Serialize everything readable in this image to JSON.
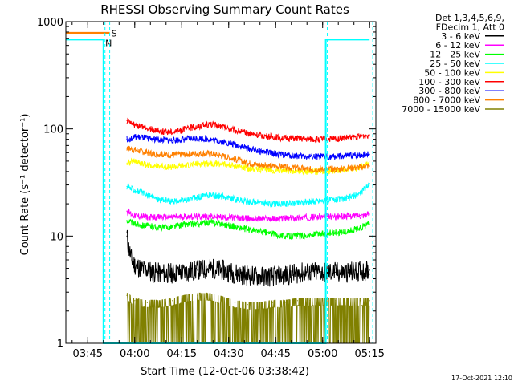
{
  "chart_data": {
    "type": "line",
    "title": "RHESSI Observing Summary Count Rates",
    "xlabel": "Start Time (12-Oct-06 03:38:42)",
    "ylabel": "Count Rate (s⁻¹ detector⁻¹)",
    "yscale": "log",
    "ylim": [
      1,
      1000
    ],
    "xlim_minutes": [
      0,
      99
    ],
    "x_tick_minutes": [
      7,
      22,
      37,
      52,
      67,
      82,
      97
    ],
    "x_tick_labels": [
      "03:45",
      "04:00",
      "04:15",
      "04:30",
      "04:45",
      "05:00",
      "05:15"
    ],
    "y_tick_values": [
      1,
      10,
      100,
      1000
    ],
    "y_tick_labels": [
      "1",
      "10",
      "100",
      "1000"
    ],
    "legend_header": [
      "Det 1,3,4,5,6,9,",
      "FDecim 1, Att 0"
    ],
    "flag_labels": {
      "saa": "S",
      "night": "N"
    },
    "flag_levels": {
      "saa": 780,
      "night": 680
    },
    "series": [
      {
        "name": "3 - 6 keV",
        "color": "#000000",
        "points": [
          [
            19.5,
            10
          ],
          [
            20,
            8
          ],
          [
            21,
            6
          ],
          [
            22,
            5.4
          ],
          [
            24,
            5
          ],
          [
            27,
            4.7
          ],
          [
            30,
            4.5
          ],
          [
            34,
            4.5
          ],
          [
            38,
            4.6
          ],
          [
            42,
            4.8
          ],
          [
            46,
            5
          ],
          [
            50,
            4.8
          ],
          [
            54,
            4.5
          ],
          [
            58,
            4.3
          ],
          [
            62,
            4.2
          ],
          [
            66,
            4.2
          ],
          [
            70,
            4.3
          ],
          [
            74,
            4.5
          ],
          [
            78,
            4.6
          ],
          [
            82,
            4.6
          ],
          [
            86,
            4.6
          ],
          [
            90,
            4.6
          ],
          [
            94,
            4.7
          ],
          [
            97,
            4.8
          ]
        ]
      },
      {
        "name": "6 - 12 keV",
        "color": "#ff00ff",
        "points": [
          [
            19.5,
            17
          ],
          [
            22,
            15.5
          ],
          [
            26,
            15
          ],
          [
            30,
            15
          ],
          [
            34,
            15
          ],
          [
            38,
            15.2
          ],
          [
            42,
            15.2
          ],
          [
            46,
            15.2
          ],
          [
            50,
            15
          ],
          [
            54,
            14.8
          ],
          [
            58,
            14.6
          ],
          [
            62,
            14.5
          ],
          [
            66,
            14.5
          ],
          [
            70,
            14.6
          ],
          [
            74,
            14.8
          ],
          [
            78,
            15
          ],
          [
            82,
            15.2
          ],
          [
            86,
            15.2
          ],
          [
            90,
            15.4
          ],
          [
            94,
            15.6
          ],
          [
            97,
            16
          ]
        ]
      },
      {
        "name": "12 - 25 keV",
        "color": "#00ff00",
        "points": [
          [
            19.5,
            14
          ],
          [
            22,
            13
          ],
          [
            26,
            12.5
          ],
          [
            30,
            12
          ],
          [
            34,
            12.2
          ],
          [
            38,
            12.8
          ],
          [
            42,
            13
          ],
          [
            46,
            13.5
          ],
          [
            50,
            13
          ],
          [
            54,
            12.2
          ],
          [
            58,
            11.5
          ],
          [
            62,
            11
          ],
          [
            66,
            10.5
          ],
          [
            70,
            10
          ],
          [
            74,
            10
          ],
          [
            78,
            10.2
          ],
          [
            82,
            10.5
          ],
          [
            86,
            10.8
          ],
          [
            90,
            11
          ],
          [
            94,
            12
          ],
          [
            97,
            13
          ]
        ]
      },
      {
        "name": "25 - 50 keV",
        "color": "#00ffff",
        "points": [
          [
            19.5,
            29
          ],
          [
            22,
            27
          ],
          [
            26,
            24
          ],
          [
            30,
            22
          ],
          [
            34,
            21
          ],
          [
            38,
            21.5
          ],
          [
            42,
            23
          ],
          [
            46,
            24
          ],
          [
            50,
            23.5
          ],
          [
            54,
            22
          ],
          [
            58,
            21
          ],
          [
            62,
            20.5
          ],
          [
            66,
            20
          ],
          [
            70,
            20
          ],
          [
            74,
            20.5
          ],
          [
            78,
            21
          ],
          [
            82,
            21.5
          ],
          [
            86,
            22
          ],
          [
            90,
            22.5
          ],
          [
            94,
            25
          ],
          [
            97,
            31
          ]
        ]
      },
      {
        "name": "50 - 100 keV",
        "color": "#ffff00",
        "points": [
          [
            19.5,
            48
          ],
          [
            22,
            50
          ],
          [
            26,
            46
          ],
          [
            30,
            45
          ],
          [
            34,
            44
          ],
          [
            38,
            45
          ],
          [
            42,
            47
          ],
          [
            46,
            48
          ],
          [
            50,
            47
          ],
          [
            54,
            45
          ],
          [
            58,
            43
          ],
          [
            62,
            42
          ],
          [
            66,
            41
          ],
          [
            70,
            41
          ],
          [
            74,
            40
          ],
          [
            78,
            40
          ],
          [
            82,
            40.5
          ],
          [
            86,
            41
          ],
          [
            90,
            42
          ],
          [
            94,
            44
          ],
          [
            97,
            47
          ]
        ]
      },
      {
        "name": "100 - 300 keV",
        "color": "#ff0000",
        "points": [
          [
            19.5,
            120
          ],
          [
            21,
            112
          ],
          [
            24,
            105
          ],
          [
            28,
            98
          ],
          [
            32,
            94
          ],
          [
            36,
            96
          ],
          [
            40,
            103
          ],
          [
            44,
            108
          ],
          [
            46,
            110
          ],
          [
            50,
            105
          ],
          [
            54,
            97
          ],
          [
            58,
            91
          ],
          [
            62,
            87
          ],
          [
            66,
            84
          ],
          [
            70,
            82
          ],
          [
            74,
            81
          ],
          [
            78,
            80
          ],
          [
            82,
            80
          ],
          [
            86,
            81
          ],
          [
            90,
            83
          ],
          [
            94,
            85
          ],
          [
            97,
            88
          ]
        ]
      },
      {
        "name": "300 - 800 keV",
        "color": "#0000ff",
        "points": [
          [
            19.5,
            80
          ],
          [
            22,
            84
          ],
          [
            26,
            82
          ],
          [
            30,
            79
          ],
          [
            34,
            78
          ],
          [
            38,
            80
          ],
          [
            42,
            82
          ],
          [
            46,
            80
          ],
          [
            50,
            76
          ],
          [
            54,
            71
          ],
          [
            58,
            66
          ],
          [
            62,
            62
          ],
          [
            66,
            59
          ],
          [
            70,
            57
          ],
          [
            74,
            56
          ],
          [
            78,
            55
          ],
          [
            82,
            55
          ],
          [
            86,
            55
          ],
          [
            90,
            56
          ],
          [
            94,
            57
          ],
          [
            97,
            58
          ]
        ]
      },
      {
        "name": "800 - 7000 keV",
        "color": "#ff8000",
        "points": [
          [
            19.5,
            66
          ],
          [
            22,
            64
          ],
          [
            26,
            60
          ],
          [
            30,
            58
          ],
          [
            34,
            57
          ],
          [
            38,
            58
          ],
          [
            42,
            59
          ],
          [
            46,
            59
          ],
          [
            50,
            56
          ],
          [
            54,
            52
          ],
          [
            58,
            48
          ],
          [
            62,
            46
          ],
          [
            66,
            45
          ],
          [
            70,
            44
          ],
          [
            74,
            43
          ],
          [
            78,
            42
          ],
          [
            82,
            42
          ],
          [
            86,
            42
          ],
          [
            90,
            43
          ],
          [
            94,
            44
          ],
          [
            97,
            45
          ]
        ]
      },
      {
        "name": "7000 - 15000 keV",
        "color": "#808000",
        "points": [
          [
            19.5,
            2.8
          ],
          [
            22,
            2.5
          ],
          [
            26,
            2.4
          ],
          [
            30,
            2.4
          ],
          [
            34,
            2.5
          ],
          [
            38,
            2.7
          ],
          [
            42,
            2.8
          ],
          [
            46,
            2.8
          ],
          [
            50,
            2.6
          ],
          [
            54,
            2.4
          ],
          [
            58,
            2.3
          ],
          [
            62,
            2.3
          ],
          [
            66,
            2.4
          ],
          [
            70,
            2.4
          ],
          [
            74,
            2.5
          ],
          [
            78,
            2.5
          ],
          [
            82,
            2.5
          ],
          [
            86,
            2.5
          ],
          [
            90,
            2.5
          ],
          [
            94,
            2.5
          ],
          [
            97,
            2.5
          ]
        ]
      }
    ],
    "attenuator_trace": {
      "color": "#00ffff",
      "points": [
        [
          0,
          680
        ],
        [
          12,
          680
        ],
        [
          12,
          1
        ],
        [
          83,
          1
        ],
        [
          83,
          680
        ],
        [
          97,
          680
        ]
      ]
    },
    "saa_bar": {
      "color": "#ff8000",
      "x_range": [
        0,
        14
      ]
    },
    "dashed_markers": {
      "color": "#00ffff",
      "x": [
        12.5,
        14,
        83.5,
        98
      ]
    }
  },
  "timestamp": "17-Oct-2021 12:10"
}
